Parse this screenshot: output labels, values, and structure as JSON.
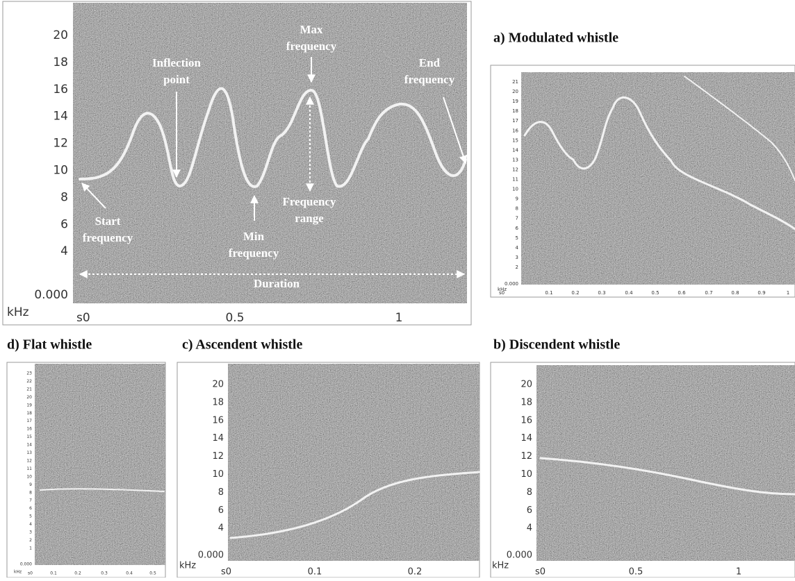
{
  "main": {
    "y_labels": [
      "20",
      "18",
      "16",
      "14",
      "12",
      "10",
      "8",
      "6",
      "4",
      "0.000"
    ],
    "y_unit": "kHz",
    "x_labels": [
      "s0",
      "0.5",
      "1"
    ],
    "annotations": {
      "max": [
        "Max",
        "frequency"
      ],
      "inflection": [
        "Inflection",
        "point"
      ],
      "end": [
        "End",
        "frequency"
      ],
      "start": [
        "Start",
        "frequency"
      ],
      "min": [
        "Min",
        "frequency"
      ],
      "range": [
        "Frequency",
        "range"
      ],
      "duration": "Duration"
    }
  },
  "modulated": {
    "title": "a) Modulated whistle",
    "y_labels": [
      "21",
      "20",
      "19",
      "18",
      "17",
      "16",
      "15",
      "14",
      "13",
      "12",
      "11",
      "10",
      "9",
      "8",
      "7",
      "6",
      "5",
      "4",
      "3",
      "2",
      "0.000"
    ],
    "y_unit": "kHz",
    "x_labels": [
      "s0",
      "0.1",
      "0.2",
      "0.3",
      "0.4",
      "0.5",
      "0.6",
      "0.7",
      "0.8",
      "0.9",
      "1"
    ]
  },
  "flat": {
    "title": "d) Flat whistle",
    "y_labels": [
      "23",
      "22",
      "21",
      "20",
      "19",
      "18",
      "17",
      "16",
      "15",
      "14",
      "13",
      "12",
      "11",
      "10",
      "9",
      "8",
      "7",
      "6",
      "5",
      "4",
      "3",
      "2",
      "1",
      "0.000"
    ],
    "y_unit": "kHz",
    "x_labels": [
      "s0",
      "0.1",
      "0.2",
      "0.3",
      "0.4",
      "0.5"
    ]
  },
  "ascendent": {
    "title": "c) Ascendent whistle",
    "y_labels": [
      "20",
      "18",
      "16",
      "14",
      "12",
      "10",
      "8",
      "6",
      "4",
      "0.000"
    ],
    "y_unit": "kHz",
    "x_labels": [
      "s0",
      "0.1",
      "0.2"
    ]
  },
  "discendent": {
    "title": "b) Discendent whistle",
    "y_labels": [
      "20",
      "18",
      "16",
      "14",
      "12",
      "10",
      "8",
      "6",
      "4",
      "0.000"
    ],
    "y_unit": "kHz",
    "x_labels": [
      "s0",
      "0.5",
      "1"
    ]
  }
}
